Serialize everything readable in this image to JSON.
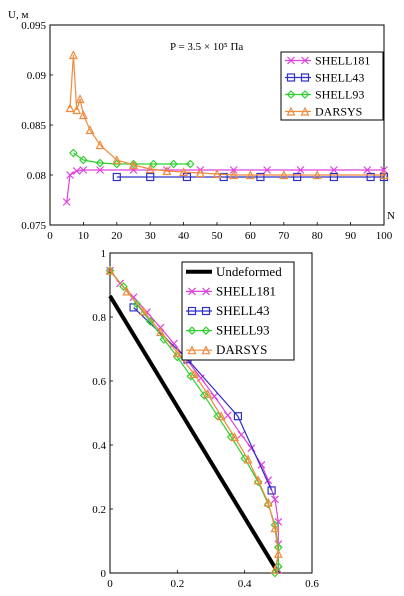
{
  "chart_data": [
    {
      "type": "line",
      "ylabel": "U, м",
      "xlabel": "N",
      "annotation": "P = 3.5 × 10⁵ Па",
      "xlim": [
        0,
        100
      ],
      "ylim": [
        0.075,
        0.095
      ],
      "xticks": [
        "0",
        "10",
        "20",
        "30",
        "40",
        "50",
        "60",
        "70",
        "80",
        "90",
        "100"
      ],
      "yticks": [
        "0.075",
        "0.08",
        "0.085",
        "0.09",
        "0.095"
      ],
      "legend_position": "top-right",
      "series": [
        {
          "name": "SHELL181",
          "color": "#e040e0",
          "marker": "x",
          "x": [
            5,
            6,
            8,
            10,
            15,
            25,
            35,
            45,
            55,
            65,
            75,
            85,
            95,
            100
          ],
          "y": [
            0.0773,
            0.08,
            0.0804,
            0.0805,
            0.0805,
            0.0805,
            0.0805,
            0.0805,
            0.0805,
            0.0805,
            0.0805,
            0.0805,
            0.0805,
            0.0805
          ]
        },
        {
          "name": "SHELL43",
          "color": "#3030c8",
          "marker": "square",
          "x": [
            20,
            30,
            41,
            52,
            63,
            74,
            85,
            96,
            100
          ],
          "y": [
            0.0798,
            0.0798,
            0.0798,
            0.0798,
            0.0798,
            0.0798,
            0.0798,
            0.0798,
            0.0798
          ]
        },
        {
          "name": "SHELL93",
          "color": "#30d030",
          "marker": "diamond",
          "x": [
            7,
            10,
            15,
            20,
            25,
            31,
            37,
            42
          ],
          "y": [
            0.0822,
            0.0815,
            0.0812,
            0.0811,
            0.0811,
            0.0811,
            0.0811,
            0.0811
          ]
        },
        {
          "name": "DARSYS",
          "color": "#f08a3c",
          "marker": "triangle",
          "x": [
            6,
            7,
            8,
            9,
            10,
            12,
            15,
            20,
            25,
            30,
            35,
            40,
            45,
            50,
            55,
            60,
            70,
            80,
            100
          ],
          "y": [
            0.0867,
            0.092,
            0.0865,
            0.0876,
            0.086,
            0.0845,
            0.083,
            0.0815,
            0.081,
            0.0806,
            0.0804,
            0.0803,
            0.0802,
            0.0801,
            0.08,
            0.08,
            0.08,
            0.08,
            0.08
          ]
        }
      ]
    },
    {
      "type": "line",
      "xlim": [
        0,
        0.6
      ],
      "ylim": [
        0,
        1
      ],
      "xticks": [
        "0",
        "0.2",
        "0.4",
        "0.6"
      ],
      "yticks": [
        "0",
        "0.2",
        "0.4",
        "0.6",
        "0.8",
        "1"
      ],
      "legend_position": "top-right",
      "series": [
        {
          "name": "Undeformed",
          "color": "#000000",
          "marker": "none",
          "x": [
            0,
            0.5
          ],
          "y": [
            0.866,
            0
          ]
        },
        {
          "name": "SHELL181",
          "color": "#e040e0",
          "marker": "x",
          "x": [
            0,
            0.03,
            0.07,
            0.11,
            0.15,
            0.19,
            0.23,
            0.27,
            0.31,
            0.35,
            0.39,
            0.42,
            0.45,
            0.47,
            0.49,
            0.5,
            0.5,
            0.5
          ],
          "y": [
            0.945,
            0.905,
            0.862,
            0.815,
            0.767,
            0.717,
            0.664,
            0.609,
            0.552,
            0.493,
            0.432,
            0.39,
            0.338,
            0.29,
            0.23,
            0.16,
            0.09,
            0.01
          ]
        },
        {
          "name": "SHELL43",
          "color": "#3030c8",
          "marker": "square",
          "x": [
            0.07,
            0.23,
            0.38,
            0.48
          ],
          "y": [
            0.83,
            0.668,
            0.49,
            0.258
          ]
        },
        {
          "name": "SHELL93",
          "color": "#30d030",
          "marker": "diamond",
          "x": [
            0,
            0.04,
            0.08,
            0.12,
            0.16,
            0.2,
            0.24,
            0.28,
            0.32,
            0.36,
            0.4,
            0.44,
            0.47,
            0.49,
            0.5,
            0.5,
            0.49
          ],
          "y": [
            0.945,
            0.895,
            0.84,
            0.786,
            0.73,
            0.675,
            0.615,
            0.555,
            0.49,
            0.425,
            0.358,
            0.285,
            0.215,
            0.15,
            0.08,
            0.02,
            0.0
          ]
        },
        {
          "name": "DARSYS",
          "color": "#f08a3c",
          "marker": "triangle",
          "x": [
            0,
            0.05,
            0.1,
            0.15,
            0.2,
            0.25,
            0.29,
            0.33,
            0.37,
            0.41,
            0.44,
            0.47,
            0.49,
            0.5,
            0.49
          ],
          "y": [
            0.945,
            0.88,
            0.818,
            0.753,
            0.688,
            0.622,
            0.56,
            0.49,
            0.425,
            0.355,
            0.29,
            0.22,
            0.14,
            0.06,
            0.01
          ]
        }
      ]
    }
  ]
}
